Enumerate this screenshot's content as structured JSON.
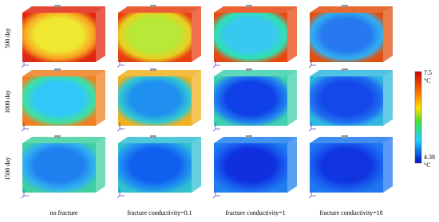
{
  "row_labels": [
    "500 day",
    "1000 day",
    "1500 day"
  ],
  "column_labels": [
    "no fracture",
    "fracture conductivity=0.1",
    "fracture conductivity=1",
    "fracture conductivity=10"
  ],
  "colorbar": {
    "max_label": "7.5",
    "max_unit": "°C",
    "min_label": "4.38",
    "min_unit": "°C"
  }
}
